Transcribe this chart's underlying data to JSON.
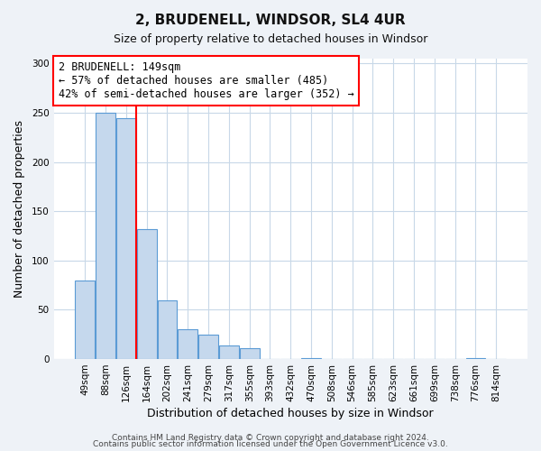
{
  "title": "2, BRUDENELL, WINDSOR, SL4 4UR",
  "subtitle": "Size of property relative to detached houses in Windsor",
  "xlabel": "Distribution of detached houses by size in Windsor",
  "ylabel": "Number of detached properties",
  "bar_labels": [
    "49sqm",
    "88sqm",
    "126sqm",
    "164sqm",
    "202sqm",
    "241sqm",
    "279sqm",
    "317sqm",
    "355sqm",
    "393sqm",
    "432sqm",
    "470sqm",
    "508sqm",
    "546sqm",
    "585sqm",
    "623sqm",
    "661sqm",
    "699sqm",
    "738sqm",
    "776sqm",
    "814sqm"
  ],
  "bar_values": [
    80,
    250,
    245,
    132,
    60,
    30,
    25,
    14,
    11,
    0,
    0,
    1,
    0,
    0,
    0,
    0,
    0,
    0,
    0,
    1,
    0
  ],
  "bar_color": "#c5d8ed",
  "bar_edge_color": "#5b9bd5",
  "red_line_x": 2.5,
  "annotation_title": "2 BRUDENELL: 149sqm",
  "annotation_line1": "← 57% of detached houses are smaller (485)",
  "annotation_line2": "42% of semi-detached houses are larger (352) →",
  "ylim": [
    0,
    305
  ],
  "yticks": [
    0,
    50,
    100,
    150,
    200,
    250,
    300
  ],
  "footnote1": "Contains HM Land Registry data © Crown copyright and database right 2024.",
  "footnote2": "Contains public sector information licensed under the Open Government Licence v3.0.",
  "background_color": "#eef2f7",
  "plot_background": "#ffffff",
  "grid_color": "#c8d8e8"
}
